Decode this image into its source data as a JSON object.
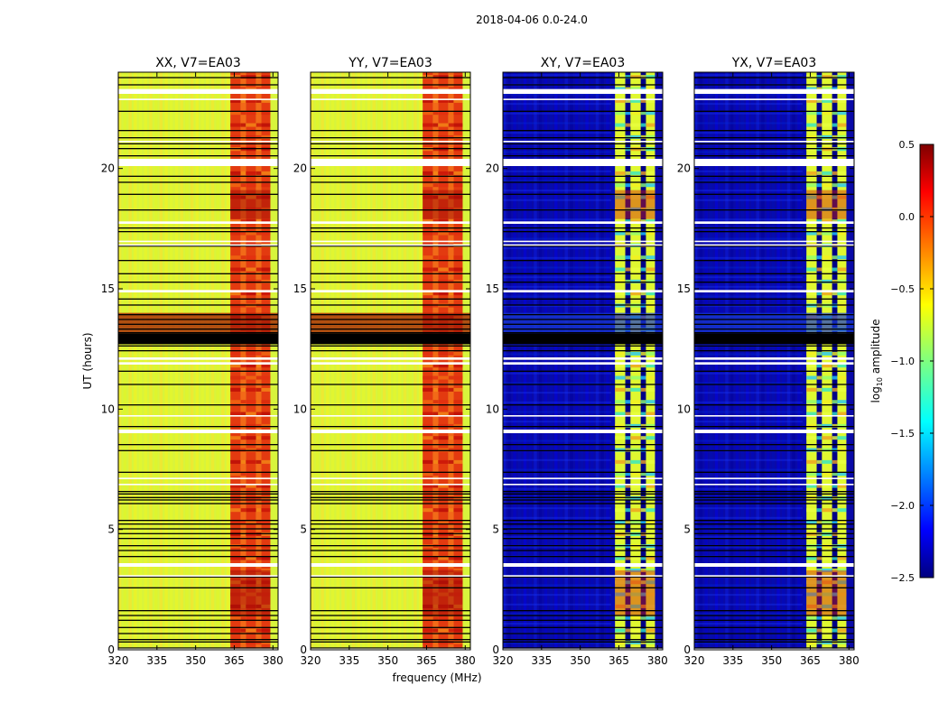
{
  "figure": {
    "suptitle": "2018-04-06 0.0-24.0",
    "xlabel": "frequency (MHz)",
    "ylabel": "UT (hours)"
  },
  "chart_data": {
    "type": "heatmap",
    "x": {
      "label": "frequency (MHz)",
      "range": [
        320,
        382
      ],
      "ticks": [
        320,
        335,
        350,
        365,
        380
      ]
    },
    "y": {
      "label": "UT (hours)",
      "range": [
        0,
        24
      ],
      "ticks": [
        0,
        5,
        10,
        15,
        20
      ]
    },
    "panels": [
      {
        "title": "XX, V7=EA03",
        "kind": "parallel"
      },
      {
        "title": "YY, V7=EA03",
        "kind": "parallel"
      },
      {
        "title": "XY, V7=EA03",
        "kind": "cross"
      },
      {
        "title": "YX, V7=EA03",
        "kind": "cross"
      }
    ],
    "band_edges_mhz": [
      363.5,
      367.5,
      369.5,
      373.5,
      375.5,
      379.0
    ],
    "white_gaps_hours": [
      [
        23.1,
        23.3
      ],
      [
        20.1,
        20.4
      ],
      [
        17.7,
        17.8
      ],
      [
        14.85,
        14.95
      ],
      [
        12.05,
        12.15
      ],
      [
        11.85,
        11.95
      ],
      [
        9.0,
        9.15
      ],
      [
        3.45,
        3.6
      ],
      [
        0.0,
        0.05
      ]
    ],
    "colorbar": {
      "label": "log10 amplitude",
      "label_main": "log",
      "label_sub": "10",
      "label_rest": " amplitude",
      "range": [
        -2.5,
        0.5
      ],
      "ticks": [
        "0.5",
        "0.0",
        "−0.5",
        "−1.0",
        "−1.5",
        "−2.0",
        "−2.5"
      ],
      "tick_values": [
        0.5,
        0.0,
        -0.5,
        -1.0,
        -1.5,
        -2.0,
        -2.5
      ],
      "colormap": "jet"
    }
  }
}
